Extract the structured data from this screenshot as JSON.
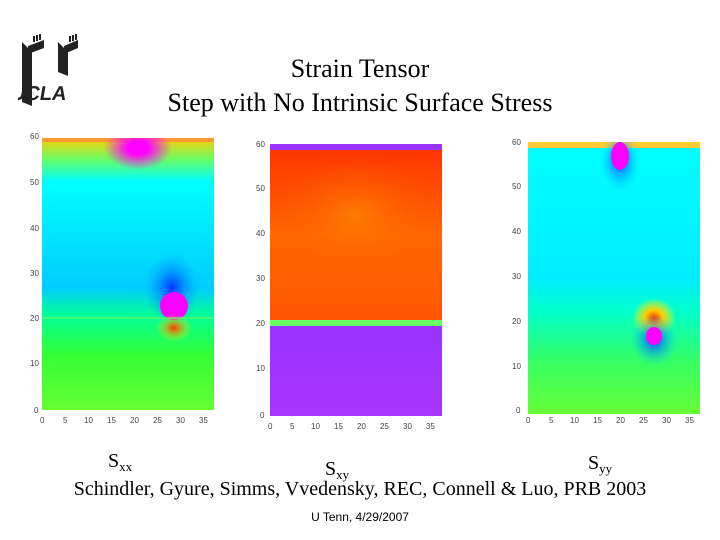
{
  "header": {
    "title_line1": "Strain Tensor",
    "title_line2": "Step with No Intrinsic Surface Stress",
    "logo_text": "UCLA",
    "logo_icon": "ucla-towers-logo"
  },
  "plots": [
    {
      "id": "sxx",
      "label_main": "S",
      "label_sub": "xx"
    },
    {
      "id": "sxy",
      "label_main": "S",
      "label_sub": "xy"
    },
    {
      "id": "syy",
      "label_main": "S",
      "label_sub": "yy"
    }
  ],
  "axes": {
    "x_ticks": [
      "0",
      "5",
      "10",
      "15",
      "20",
      "25",
      "30",
      "35"
    ],
    "y_ticks": [
      "0",
      "10",
      "20",
      "30",
      "40",
      "50",
      "60"
    ]
  },
  "citation": "Schindler, Gyure, Simms, Vvedensky, REC, Connell & Luo, PRB 2003",
  "footer": "U Tenn, 4/29/2007",
  "colors": {
    "magenta": "#ff00ff",
    "cyan": "#00ffff",
    "green": "#00ff66",
    "yellow": "#ffff00",
    "red": "#ff3300",
    "purple": "#9933ff",
    "orange": "#ff6600"
  }
}
